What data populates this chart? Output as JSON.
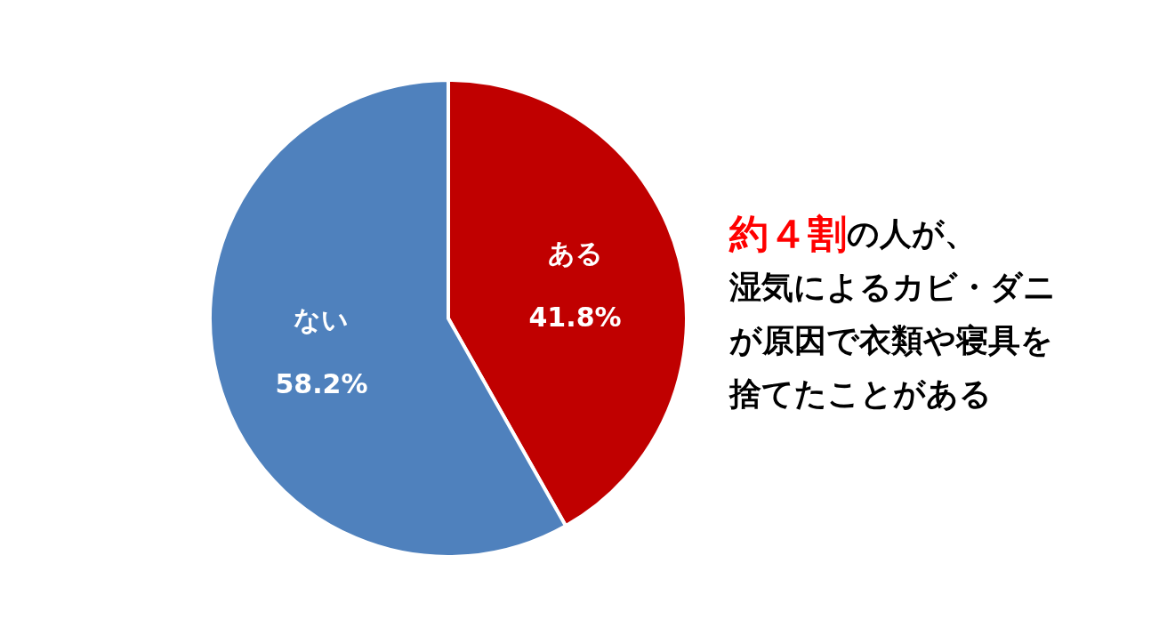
{
  "chart_data": {
    "type": "pie",
    "categories": [
      "ある",
      "ない"
    ],
    "values": [
      41.8,
      58.2
    ],
    "colors": [
      "#c00000",
      "#4f81bd"
    ],
    "value_labels": [
      "41.8%",
      "58.2%"
    ],
    "annotations": [
      "約４割",
      "の人が、",
      "湿気によるカビ・ダニ",
      "が原因で衣類や寝具を",
      "捨てたことがある"
    ]
  }
}
